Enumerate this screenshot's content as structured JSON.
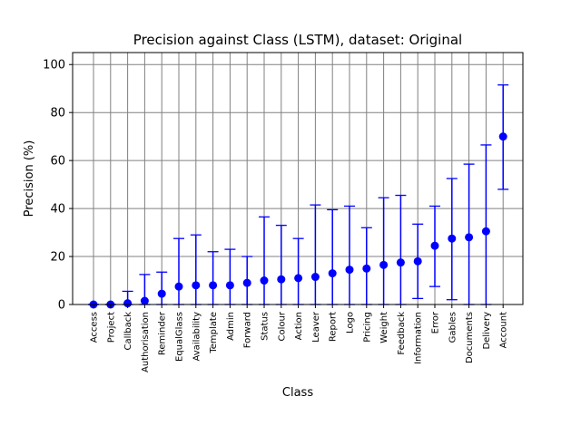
{
  "chart_data": {
    "type": "scatter",
    "title": "Precision against Class (LSTM), dataset: Original",
    "xlabel": "Class",
    "ylabel": "Precision (%)",
    "ylim": [
      0,
      105
    ],
    "yticks": [
      0,
      20,
      40,
      60,
      80,
      100
    ],
    "grid": true,
    "legend": "none",
    "marker_color": "#0000ff",
    "grid_color": "#808080",
    "categories": [
      "Access",
      "Project",
      "Callback",
      "Authorisation",
      "Reminder",
      "EqualGlass",
      "Availability",
      "Template",
      "Admin",
      "Forward",
      "Status",
      "Colour",
      "Action",
      "Leaver",
      "Report",
      "Logo",
      "Pricing",
      "Weight",
      "Feedback",
      "Information",
      "Error",
      "Gables",
      "Documents",
      "Delivery",
      "Account"
    ],
    "series": [
      {
        "values": [
          0,
          0,
          0.5,
          1.5,
          4.5,
          7.5,
          8,
          8,
          8,
          9,
          10,
          10.5,
          11,
          11.5,
          13,
          14.5,
          15,
          16.5,
          17.5,
          18,
          24.5,
          27.5,
          28,
          30.5,
          70
        ],
        "error_low": [
          0,
          0,
          0,
          0,
          0,
          0,
          0,
          0,
          0,
          0,
          0,
          0,
          0,
          0,
          0,
          0,
          0,
          0,
          0,
          2.5,
          7.5,
          2,
          0,
          0,
          48
        ],
        "error_high": [
          0,
          0,
          5.5,
          12.5,
          13.5,
          27.5,
          29,
          22,
          23,
          20,
          36.5,
          33,
          27.5,
          41.5,
          39.5,
          41,
          32,
          44.5,
          45.5,
          33.5,
          41,
          52.5,
          58.5,
          66.5,
          91.5
        ]
      }
    ]
  }
}
